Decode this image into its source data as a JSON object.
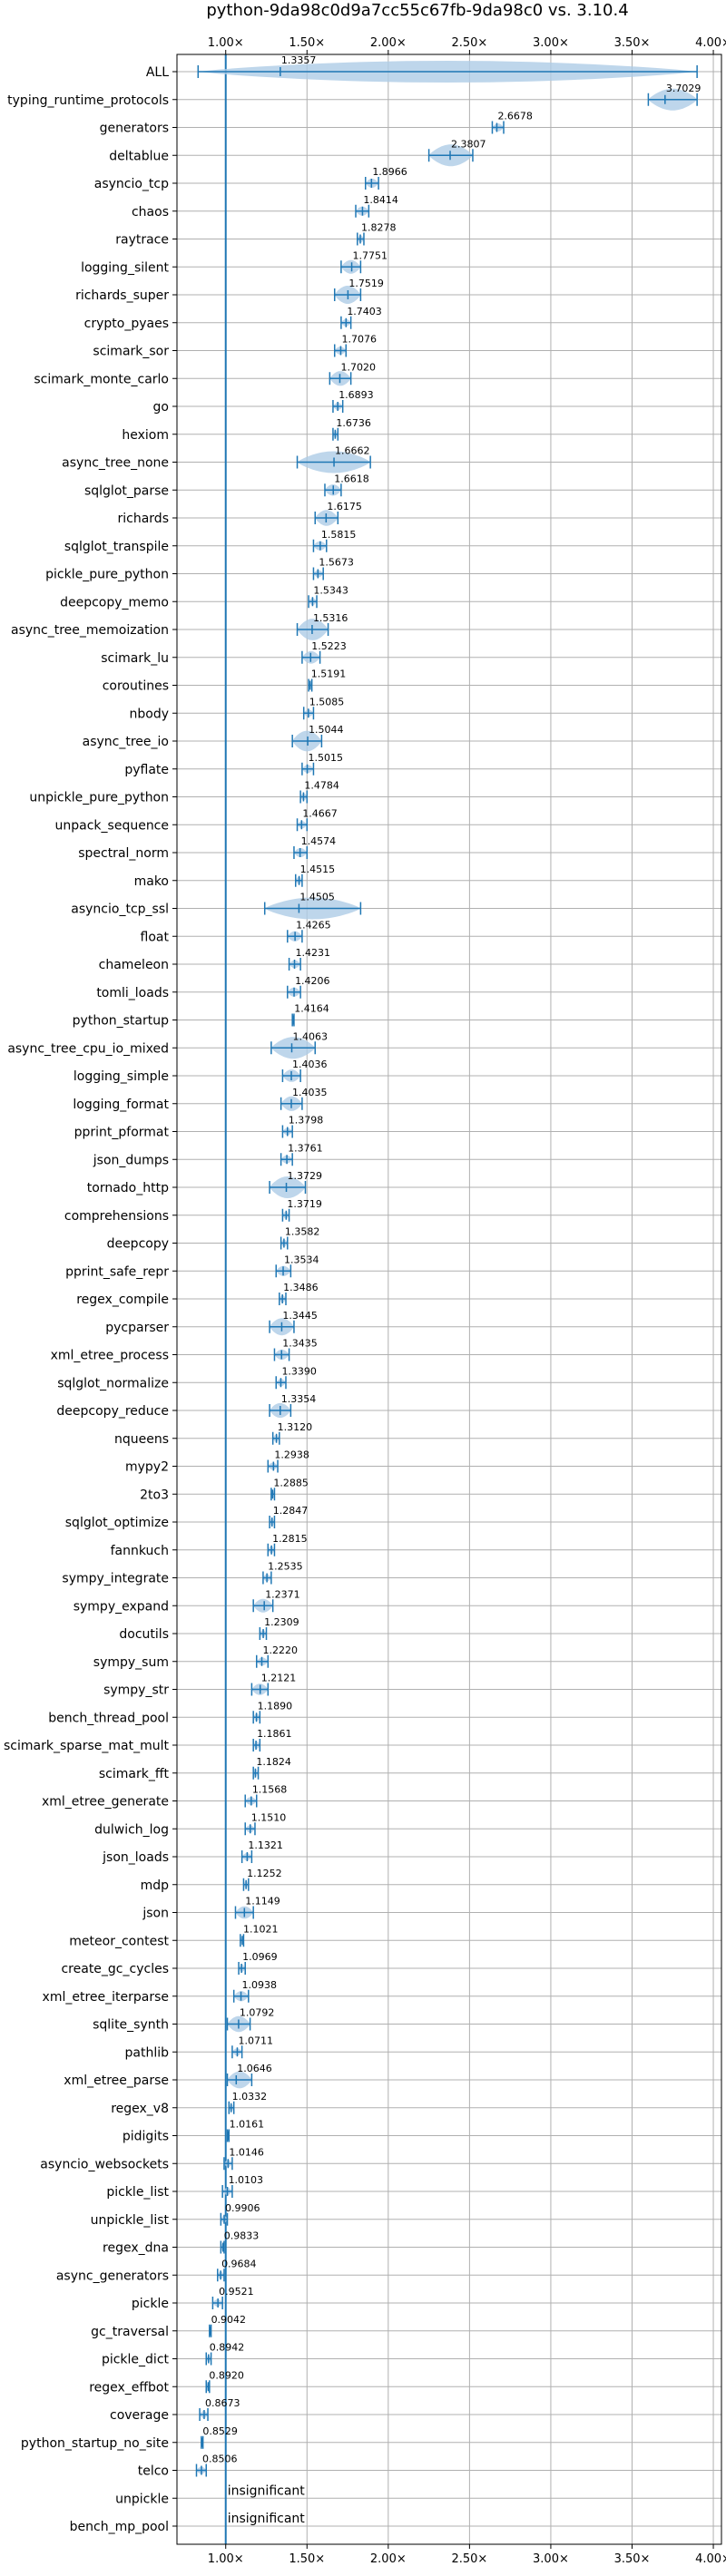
{
  "chart_data": {
    "type": "violin",
    "title": "python-9da98c0d9a7cc55c67fb-9da98c0 vs. 3.10.4",
    "xlim": [
      0.7,
      4.05
    ],
    "x_ticks": [
      1.0,
      1.5,
      2.0,
      2.5,
      3.0,
      3.5,
      4.0
    ],
    "x_tick_labels": [
      "1.00×",
      "1.50×",
      "2.00×",
      "2.50×",
      "3.00×",
      "3.50×",
      "4.00×"
    ],
    "reference_line": 1.0,
    "grid": true,
    "insignificant_text": "insignificant",
    "colors": {
      "violin": "#aecce6",
      "whisker": "#1f77b4",
      "refline": "#1f77b4",
      "grid": "#b0b0b0"
    },
    "benchmarks": [
      {
        "name": "ALL",
        "value": 1.3357,
        "label": "1.3357",
        "lo": 0.83,
        "hi": 3.9
      },
      {
        "name": "typing_runtime_protocols",
        "value": 3.7029,
        "label": "3.7029",
        "lo": 3.6,
        "hi": 3.9
      },
      {
        "name": "generators",
        "value": 2.6678,
        "label": "2.6678",
        "lo": 2.64,
        "hi": 2.71
      },
      {
        "name": "deltablue",
        "value": 2.3807,
        "label": "2.3807",
        "lo": 2.25,
        "hi": 2.52
      },
      {
        "name": "asyncio_tcp",
        "value": 1.8966,
        "label": "1.8966",
        "lo": 1.86,
        "hi": 1.94
      },
      {
        "name": "chaos",
        "value": 1.8414,
        "label": "1.8414",
        "lo": 1.8,
        "hi": 1.88
      },
      {
        "name": "raytrace",
        "value": 1.8278,
        "label": "1.8278",
        "lo": 1.81,
        "hi": 1.85
      },
      {
        "name": "logging_silent",
        "value": 1.7751,
        "label": "1.7751",
        "lo": 1.71,
        "hi": 1.83
      },
      {
        "name": "richards_super",
        "value": 1.7519,
        "label": "1.7519",
        "lo": 1.67,
        "hi": 1.83
      },
      {
        "name": "crypto_pyaes",
        "value": 1.7403,
        "label": "1.7403",
        "lo": 1.71,
        "hi": 1.77
      },
      {
        "name": "scimark_sor",
        "value": 1.7076,
        "label": "1.7076",
        "lo": 1.67,
        "hi": 1.74
      },
      {
        "name": "scimark_monte_carlo",
        "value": 1.702,
        "label": "1.7020",
        "lo": 1.64,
        "hi": 1.77
      },
      {
        "name": "go",
        "value": 1.6893,
        "label": "1.6893",
        "lo": 1.66,
        "hi": 1.72
      },
      {
        "name": "hexiom",
        "value": 1.6736,
        "label": "1.6736",
        "lo": 1.66,
        "hi": 1.69
      },
      {
        "name": "async_tree_none",
        "value": 1.6662,
        "label": "1.6662",
        "lo": 1.44,
        "hi": 1.89
      },
      {
        "name": "sqlglot_parse",
        "value": 1.6618,
        "label": "1.6618",
        "lo": 1.61,
        "hi": 1.71
      },
      {
        "name": "richards",
        "value": 1.6175,
        "label": "1.6175",
        "lo": 1.55,
        "hi": 1.69
      },
      {
        "name": "sqlglot_transpile",
        "value": 1.5815,
        "label": "1.5815",
        "lo": 1.54,
        "hi": 1.62
      },
      {
        "name": "pickle_pure_python",
        "value": 1.5673,
        "label": "1.5673",
        "lo": 1.54,
        "hi": 1.6
      },
      {
        "name": "deepcopy_memo",
        "value": 1.5343,
        "label": "1.5343",
        "lo": 1.51,
        "hi": 1.56
      },
      {
        "name": "async_tree_memoization",
        "value": 1.5316,
        "label": "1.5316",
        "lo": 1.44,
        "hi": 1.63
      },
      {
        "name": "scimark_lu",
        "value": 1.5223,
        "label": "1.5223",
        "lo": 1.47,
        "hi": 1.58
      },
      {
        "name": "coroutines",
        "value": 1.5191,
        "label": "1.5191",
        "lo": 1.51,
        "hi": 1.53
      },
      {
        "name": "nbody",
        "value": 1.5085,
        "label": "1.5085",
        "lo": 1.48,
        "hi": 1.54
      },
      {
        "name": "async_tree_io",
        "value": 1.5044,
        "label": "1.5044",
        "lo": 1.41,
        "hi": 1.59
      },
      {
        "name": "pyflate",
        "value": 1.5015,
        "label": "1.5015",
        "lo": 1.47,
        "hi": 1.54
      },
      {
        "name": "unpickle_pure_python",
        "value": 1.4784,
        "label": "1.4784",
        "lo": 1.46,
        "hi": 1.5
      },
      {
        "name": "unpack_sequence",
        "value": 1.4667,
        "label": "1.4667",
        "lo": 1.44,
        "hi": 1.5
      },
      {
        "name": "spectral_norm",
        "value": 1.4574,
        "label": "1.4574",
        "lo": 1.42,
        "hi": 1.5
      },
      {
        "name": "mako",
        "value": 1.4515,
        "label": "1.4515",
        "lo": 1.43,
        "hi": 1.47
      },
      {
        "name": "asyncio_tcp_ssl",
        "value": 1.4505,
        "label": "1.4505",
        "lo": 1.24,
        "hi": 1.83
      },
      {
        "name": "float",
        "value": 1.4265,
        "label": "1.4265",
        "lo": 1.38,
        "hi": 1.47
      },
      {
        "name": "chameleon",
        "value": 1.4231,
        "label": "1.4231",
        "lo": 1.39,
        "hi": 1.46
      },
      {
        "name": "tomli_loads",
        "value": 1.4206,
        "label": "1.4206",
        "lo": 1.38,
        "hi": 1.46
      },
      {
        "name": "python_startup",
        "value": 1.4164,
        "label": "1.4164",
        "lo": 1.41,
        "hi": 1.42
      },
      {
        "name": "async_tree_cpu_io_mixed",
        "value": 1.4063,
        "label": "1.4063",
        "lo": 1.28,
        "hi": 1.55
      },
      {
        "name": "logging_simple",
        "value": 1.4036,
        "label": "1.4036",
        "lo": 1.35,
        "hi": 1.46
      },
      {
        "name": "logging_format",
        "value": 1.4035,
        "label": "1.4035",
        "lo": 1.34,
        "hi": 1.47
      },
      {
        "name": "pprint_pformat",
        "value": 1.3798,
        "label": "1.3798",
        "lo": 1.35,
        "hi": 1.41
      },
      {
        "name": "json_dumps",
        "value": 1.3761,
        "label": "1.3761",
        "lo": 1.34,
        "hi": 1.41
      },
      {
        "name": "tornado_http",
        "value": 1.3729,
        "label": "1.3729",
        "lo": 1.27,
        "hi": 1.49
      },
      {
        "name": "comprehensions",
        "value": 1.3719,
        "label": "1.3719",
        "lo": 1.35,
        "hi": 1.39
      },
      {
        "name": "deepcopy",
        "value": 1.3582,
        "label": "1.3582",
        "lo": 1.34,
        "hi": 1.38
      },
      {
        "name": "pprint_safe_repr",
        "value": 1.3534,
        "label": "1.3534",
        "lo": 1.31,
        "hi": 1.4
      },
      {
        "name": "regex_compile",
        "value": 1.3486,
        "label": "1.3486",
        "lo": 1.33,
        "hi": 1.37
      },
      {
        "name": "pycparser",
        "value": 1.3445,
        "label": "1.3445",
        "lo": 1.27,
        "hi": 1.42
      },
      {
        "name": "xml_etree_process",
        "value": 1.3435,
        "label": "1.3435",
        "lo": 1.3,
        "hi": 1.39
      },
      {
        "name": "sqlglot_normalize",
        "value": 1.339,
        "label": "1.3390",
        "lo": 1.31,
        "hi": 1.37
      },
      {
        "name": "deepcopy_reduce",
        "value": 1.3354,
        "label": "1.3354",
        "lo": 1.27,
        "hi": 1.4
      },
      {
        "name": "nqueens",
        "value": 1.312,
        "label": "1.3120",
        "lo": 1.29,
        "hi": 1.33
      },
      {
        "name": "mypy2",
        "value": 1.2938,
        "label": "1.2938",
        "lo": 1.26,
        "hi": 1.32
      },
      {
        "name": "2to3",
        "value": 1.2885,
        "label": "1.2885",
        "lo": 1.28,
        "hi": 1.3
      },
      {
        "name": "sqlglot_optimize",
        "value": 1.2847,
        "label": "1.2847",
        "lo": 1.27,
        "hi": 1.3
      },
      {
        "name": "fannkuch",
        "value": 1.2815,
        "label": "1.2815",
        "lo": 1.26,
        "hi": 1.3
      },
      {
        "name": "sympy_integrate",
        "value": 1.2535,
        "label": "1.2535",
        "lo": 1.23,
        "hi": 1.28
      },
      {
        "name": "sympy_expand",
        "value": 1.2371,
        "label": "1.2371",
        "lo": 1.17,
        "hi": 1.29
      },
      {
        "name": "docutils",
        "value": 1.2309,
        "label": "1.2309",
        "lo": 1.21,
        "hi": 1.25
      },
      {
        "name": "sympy_sum",
        "value": 1.222,
        "label": "1.2220",
        "lo": 1.19,
        "hi": 1.26
      },
      {
        "name": "sympy_str",
        "value": 1.2121,
        "label": "1.2121",
        "lo": 1.16,
        "hi": 1.26
      },
      {
        "name": "bench_thread_pool",
        "value": 1.189,
        "label": "1.1890",
        "lo": 1.17,
        "hi": 1.21
      },
      {
        "name": "scimark_sparse_mat_mult",
        "value": 1.1861,
        "label": "1.1861",
        "lo": 1.17,
        "hi": 1.21
      },
      {
        "name": "scimark_fft",
        "value": 1.1824,
        "label": "1.1824",
        "lo": 1.17,
        "hi": 1.2
      },
      {
        "name": "xml_etree_generate",
        "value": 1.1568,
        "label": "1.1568",
        "lo": 1.12,
        "hi": 1.19
      },
      {
        "name": "dulwich_log",
        "value": 1.151,
        "label": "1.1510",
        "lo": 1.12,
        "hi": 1.18
      },
      {
        "name": "json_loads",
        "value": 1.1321,
        "label": "1.1321",
        "lo": 1.1,
        "hi": 1.16
      },
      {
        "name": "mdp",
        "value": 1.1252,
        "label": "1.1252",
        "lo": 1.11,
        "hi": 1.14
      },
      {
        "name": "json",
        "value": 1.1149,
        "label": "1.1149",
        "lo": 1.06,
        "hi": 1.17
      },
      {
        "name": "meteor_contest",
        "value": 1.1021,
        "label": "1.1021",
        "lo": 1.09,
        "hi": 1.11
      },
      {
        "name": "create_gc_cycles",
        "value": 1.0969,
        "label": "1.0969",
        "lo": 1.08,
        "hi": 1.12
      },
      {
        "name": "xml_etree_iterparse",
        "value": 1.0938,
        "label": "1.0938",
        "lo": 1.05,
        "hi": 1.14
      },
      {
        "name": "sqlite_synth",
        "value": 1.0792,
        "label": "1.0792",
        "lo": 1.01,
        "hi": 1.15
      },
      {
        "name": "pathlib",
        "value": 1.0711,
        "label": "1.0711",
        "lo": 1.04,
        "hi": 1.1
      },
      {
        "name": "xml_etree_parse",
        "value": 1.0646,
        "label": "1.0646",
        "lo": 1.01,
        "hi": 1.16
      },
      {
        "name": "regex_v8",
        "value": 1.0332,
        "label": "1.0332",
        "lo": 1.02,
        "hi": 1.05
      },
      {
        "name": "pidigits",
        "value": 1.0161,
        "label": "1.0161",
        "lo": 1.01,
        "hi": 1.02
      },
      {
        "name": "asyncio_websockets",
        "value": 1.0146,
        "label": "1.0146",
        "lo": 0.99,
        "hi": 1.04
      },
      {
        "name": "pickle_list",
        "value": 1.0103,
        "label": "1.0103",
        "lo": 0.98,
        "hi": 1.04
      },
      {
        "name": "unpickle_list",
        "value": 0.9906,
        "label": "0.9906",
        "lo": 0.97,
        "hi": 1.01
      },
      {
        "name": "regex_dna",
        "value": 0.9833,
        "label": "0.9833",
        "lo": 0.97,
        "hi": 0.99
      },
      {
        "name": "async_generators",
        "value": 0.9684,
        "label": "0.9684",
        "lo": 0.95,
        "hi": 0.99
      },
      {
        "name": "pickle",
        "value": 0.9521,
        "label": "0.9521",
        "lo": 0.92,
        "hi": 0.98
      },
      {
        "name": "gc_traversal",
        "value": 0.9042,
        "label": "0.9042",
        "lo": 0.9,
        "hi": 0.91
      },
      {
        "name": "pickle_dict",
        "value": 0.8942,
        "label": "0.8942",
        "lo": 0.88,
        "hi": 0.91
      },
      {
        "name": "regex_effbot",
        "value": 0.892,
        "label": "0.8920",
        "lo": 0.88,
        "hi": 0.9
      },
      {
        "name": "coverage",
        "value": 0.8673,
        "label": "0.8673",
        "lo": 0.84,
        "hi": 0.89
      },
      {
        "name": "python_startup_no_site",
        "value": 0.8529,
        "label": "0.8529",
        "lo": 0.85,
        "hi": 0.86
      },
      {
        "name": "telco",
        "value": 0.8506,
        "label": "0.8506",
        "lo": 0.82,
        "hi": 0.88
      },
      {
        "name": "unpickle",
        "value": null,
        "label": "insignificant",
        "lo": null,
        "hi": null
      },
      {
        "name": "bench_mp_pool",
        "value": null,
        "label": "insignificant",
        "lo": null,
        "hi": null
      }
    ]
  }
}
